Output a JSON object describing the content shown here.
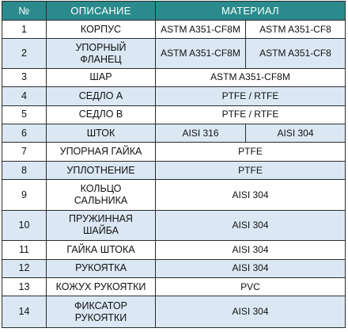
{
  "headers": {
    "num": "№",
    "desc": "ОПИСАНИЕ",
    "material": "МАТЕРИАЛ"
  },
  "rows": [
    {
      "num": "1",
      "desc_lines": [
        "КОРПУС"
      ],
      "mat_a": "ASTM A351-CF8M",
      "mat_b": "ASTM A351-CF8"
    },
    {
      "num": "2",
      "desc_lines": [
        "УПОРНЫЙ",
        "ФЛАНЕЦ"
      ],
      "mat_a": "ASTM A351-CF8M",
      "mat_b": "ASTM A351-CF8"
    },
    {
      "num": "3",
      "desc_lines": [
        "ШАР"
      ],
      "mat": "ASTM A351-CF8M"
    },
    {
      "num": "4",
      "desc_lines": [
        "СЕДЛО А"
      ],
      "mat": "PTFE / RTFE"
    },
    {
      "num": "5",
      "desc_lines": [
        "СЕДЛО В"
      ],
      "mat": "PTFE / RTFE"
    },
    {
      "num": "6",
      "desc_lines": [
        "ШТОК"
      ],
      "mat_a": "AISI 316",
      "mat_b": "AISI 304"
    },
    {
      "num": "7",
      "desc_lines": [
        "УПОРНАЯ ГАЙКА"
      ],
      "mat": "PTFE"
    },
    {
      "num": "8",
      "desc_lines": [
        "УПЛОТНЕНИЕ"
      ],
      "mat": "PTFE"
    },
    {
      "num": "9",
      "desc_lines": [
        "КОЛЬЦО",
        "САЛЬНИКА"
      ],
      "mat": "AISI 304"
    },
    {
      "num": "10",
      "desc_lines": [
        "ПРУЖИННАЯ",
        "ШАЙБА"
      ],
      "mat": "AISI 304"
    },
    {
      "num": "11",
      "desc_lines": [
        "ГАЙКА  ШТОКА"
      ],
      "mat": "AISI 304"
    },
    {
      "num": "12",
      "desc_lines": [
        "РУКОЯТКА"
      ],
      "mat": "AISI 304"
    },
    {
      "num": "13",
      "desc_lines": [
        "КОЖУХ  РУКОЯТКИ"
      ],
      "mat": "PVC"
    },
    {
      "num": "14",
      "desc_lines": [
        "ФИКСАТОР",
        "РУКОЯТКИ"
      ],
      "mat": "AISI 304"
    }
  ]
}
